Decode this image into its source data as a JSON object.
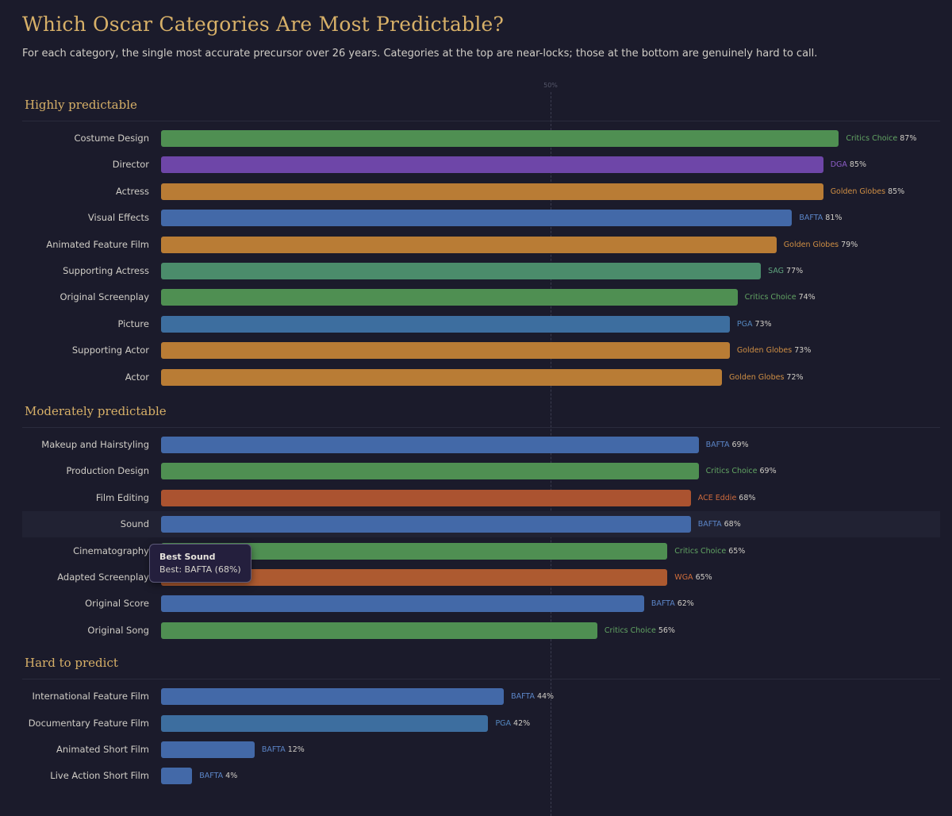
{
  "header": {
    "title": "Which Oscar Categories Are Most Predictable?",
    "subtitle": "For each category, the single most accurate precursor over 26 years. Categories at the top are near-locks; those at the bottom are genuinely hard to call."
  },
  "colors": {
    "Critics Choice": "#4f8f52",
    "DGA": "#6e46a8",
    "Golden Globes": "#b97c35",
    "BAFTA": "#4369a8",
    "SAG": "#4b8c6b",
    "PGA": "#3d6e9f",
    "ACE Eddie": "#ab5330",
    "WGA": "#ad5a30"
  },
  "label_colors": {
    "Critics Choice": "#62a463",
    "DGA": "#8e5ec8",
    "Golden Globes": "#d08f44",
    "BAFTA": "#5b85c7",
    "SAG": "#5fa57e",
    "PGA": "#5588c0",
    "ACE Eddie": "#cc6a3c",
    "WGA": "#cf6d3b"
  },
  "chart_data": {
    "type": "bar",
    "orientation": "horizontal",
    "xlim": [
      0,
      100
    ],
    "value_unit": "%",
    "reference_line": {
      "value": 50,
      "label": "50%"
    },
    "groups": [
      {
        "name": "Highly predictable",
        "items": [
          {
            "category": "Costume Design",
            "precursor": "Critics Choice",
            "value": 87
          },
          {
            "category": "Director",
            "precursor": "DGA",
            "value": 85
          },
          {
            "category": "Actress",
            "precursor": "Golden Globes",
            "value": 85
          },
          {
            "category": "Visual Effects",
            "precursor": "BAFTA",
            "value": 81
          },
          {
            "category": "Animated Feature Film",
            "precursor": "Golden Globes",
            "value": 79
          },
          {
            "category": "Supporting Actress",
            "precursor": "SAG",
            "value": 77
          },
          {
            "category": "Original Screenplay",
            "precursor": "Critics Choice",
            "value": 74
          },
          {
            "category": "Picture",
            "precursor": "PGA",
            "value": 73
          },
          {
            "category": "Supporting Actor",
            "precursor": "Golden Globes",
            "value": 73
          },
          {
            "category": "Actor",
            "precursor": "Golden Globes",
            "value": 72
          }
        ]
      },
      {
        "name": "Moderately predictable",
        "items": [
          {
            "category": "Makeup and Hairstyling",
            "precursor": "BAFTA",
            "value": 69
          },
          {
            "category": "Production Design",
            "precursor": "Critics Choice",
            "value": 69
          },
          {
            "category": "Film Editing",
            "precursor": "ACE Eddie",
            "value": 68
          },
          {
            "category": "Sound",
            "precursor": "BAFTA",
            "value": 68,
            "highlighted": true
          },
          {
            "category": "Cinematography",
            "precursor": "Critics Choice",
            "value": 65
          },
          {
            "category": "Adapted Screenplay",
            "precursor": "WGA",
            "value": 65
          },
          {
            "category": "Original Score",
            "precursor": "BAFTA",
            "value": 62
          },
          {
            "category": "Original Song",
            "precursor": "Critics Choice",
            "value": 56
          }
        ]
      },
      {
        "name": "Hard to predict",
        "items": [
          {
            "category": "International Feature Film",
            "precursor": "BAFTA",
            "value": 44
          },
          {
            "category": "Documentary Feature Film",
            "precursor": "PGA",
            "value": 42
          },
          {
            "category": "Animated Short Film",
            "precursor": "BAFTA",
            "value": 12
          },
          {
            "category": "Live Action Short Film",
            "precursor": "BAFTA",
            "value": 4
          }
        ]
      }
    ]
  },
  "tooltip": {
    "title": "Best Sound",
    "body": "Best: BAFTA (68%)"
  }
}
